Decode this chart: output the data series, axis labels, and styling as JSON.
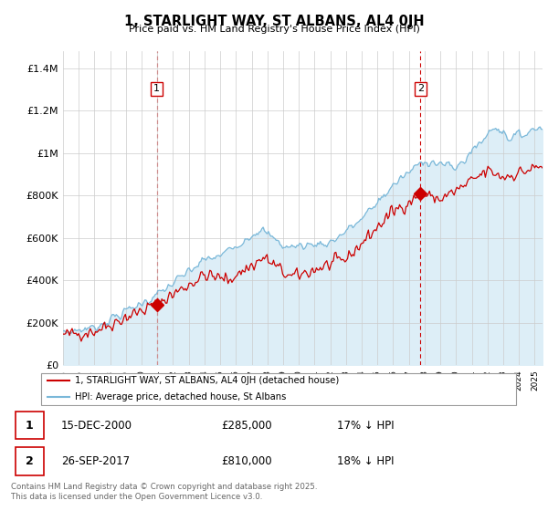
{
  "title": "1, STARLIGHT WAY, ST ALBANS, AL4 0JH",
  "subtitle": "Price paid vs. HM Land Registry's House Price Index (HPI)",
  "ylabel_ticks": [
    "£0",
    "£200K",
    "£400K",
    "£600K",
    "£800K",
    "£1M",
    "£1.2M",
    "£1.4M"
  ],
  "ytick_values": [
    0,
    200000,
    400000,
    600000,
    800000,
    1000000,
    1200000,
    1400000
  ],
  "ylim": [
    0,
    1480000
  ],
  "xlim_start": 1995.0,
  "xlim_end": 2025.5,
  "red_color": "#cc0000",
  "blue_color": "#7ab8d9",
  "blue_fill": "#ddeef7",
  "marker1_x": 2000.96,
  "marker1_y": 285000,
  "marker2_x": 2017.74,
  "marker2_y": 810000,
  "legend_label_red": "1, STARLIGHT WAY, ST ALBANS, AL4 0JH (detached house)",
  "legend_label_blue": "HPI: Average price, detached house, St Albans",
  "table_rows": [
    {
      "num": "1",
      "date": "15-DEC-2000",
      "price": "£285,000",
      "hpi": "17% ↓ HPI"
    },
    {
      "num": "2",
      "date": "26-SEP-2017",
      "price": "£810,000",
      "hpi": "18% ↓ HPI"
    }
  ],
  "footer": "Contains HM Land Registry data © Crown copyright and database right 2025.\nThis data is licensed under the Open Government Licence v3.0.",
  "background_color": "#ffffff",
  "grid_color": "#cccccc"
}
